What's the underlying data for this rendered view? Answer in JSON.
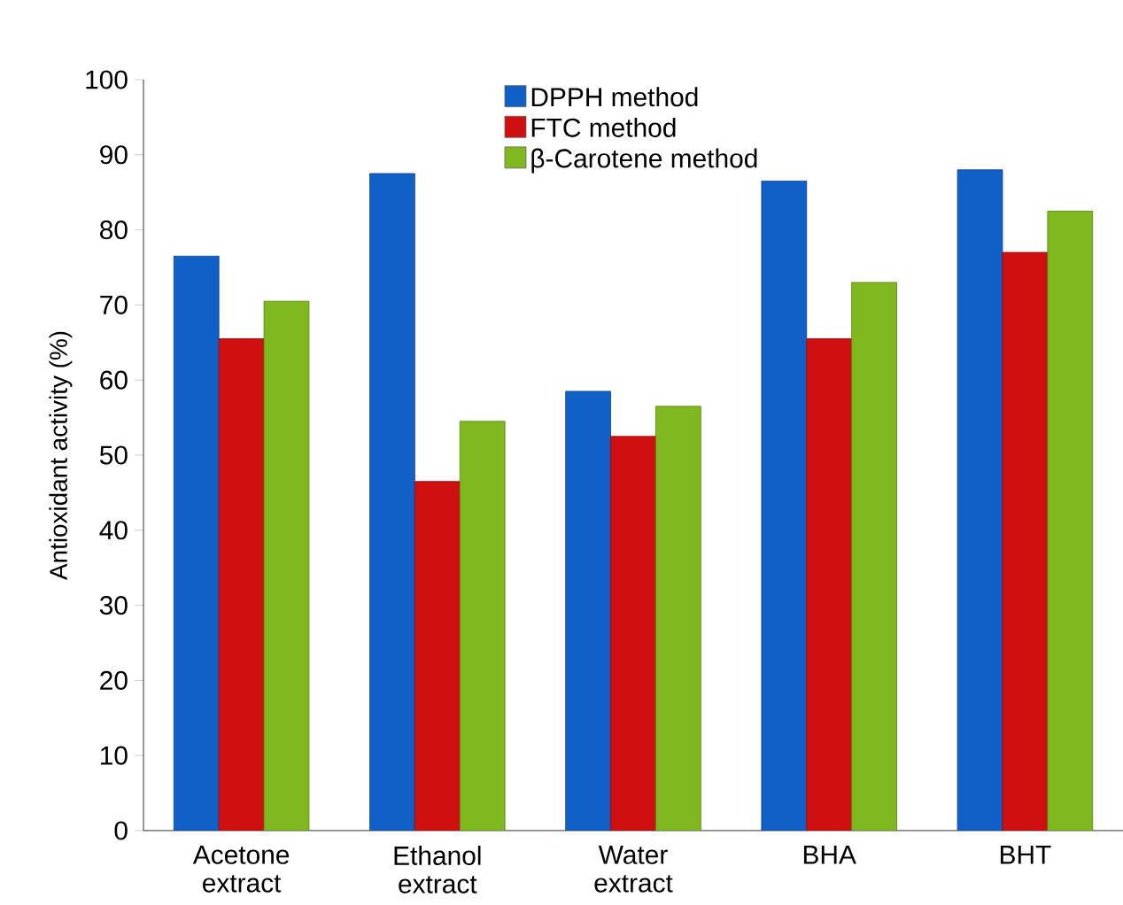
{
  "chart_data": {
    "type": "bar",
    "ylabel": "Antioxidant activity (%)",
    "categories": [
      "Acetone extract",
      "Ethanol extract",
      "Water extract",
      "BHA",
      "BHT"
    ],
    "series": [
      {
        "name": "DPPH method",
        "color": "#1060c8",
        "values": [
          76.5,
          87.5,
          58.5,
          86.5,
          88
        ]
      },
      {
        "name": "FTC method",
        "color": "#d01010",
        "values": [
          65.5,
          46.5,
          52.5,
          65.5,
          77
        ]
      },
      {
        "name": "β-Carotene method",
        "color": "#80b820",
        "values": [
          70.5,
          54.5,
          56.5,
          73,
          82.5
        ]
      }
    ],
    "ylim": [
      0,
      100
    ],
    "yticks": [
      0,
      10,
      20,
      30,
      40,
      50,
      60,
      70,
      80,
      90,
      100
    ],
    "grid": false,
    "legend": "top"
  }
}
